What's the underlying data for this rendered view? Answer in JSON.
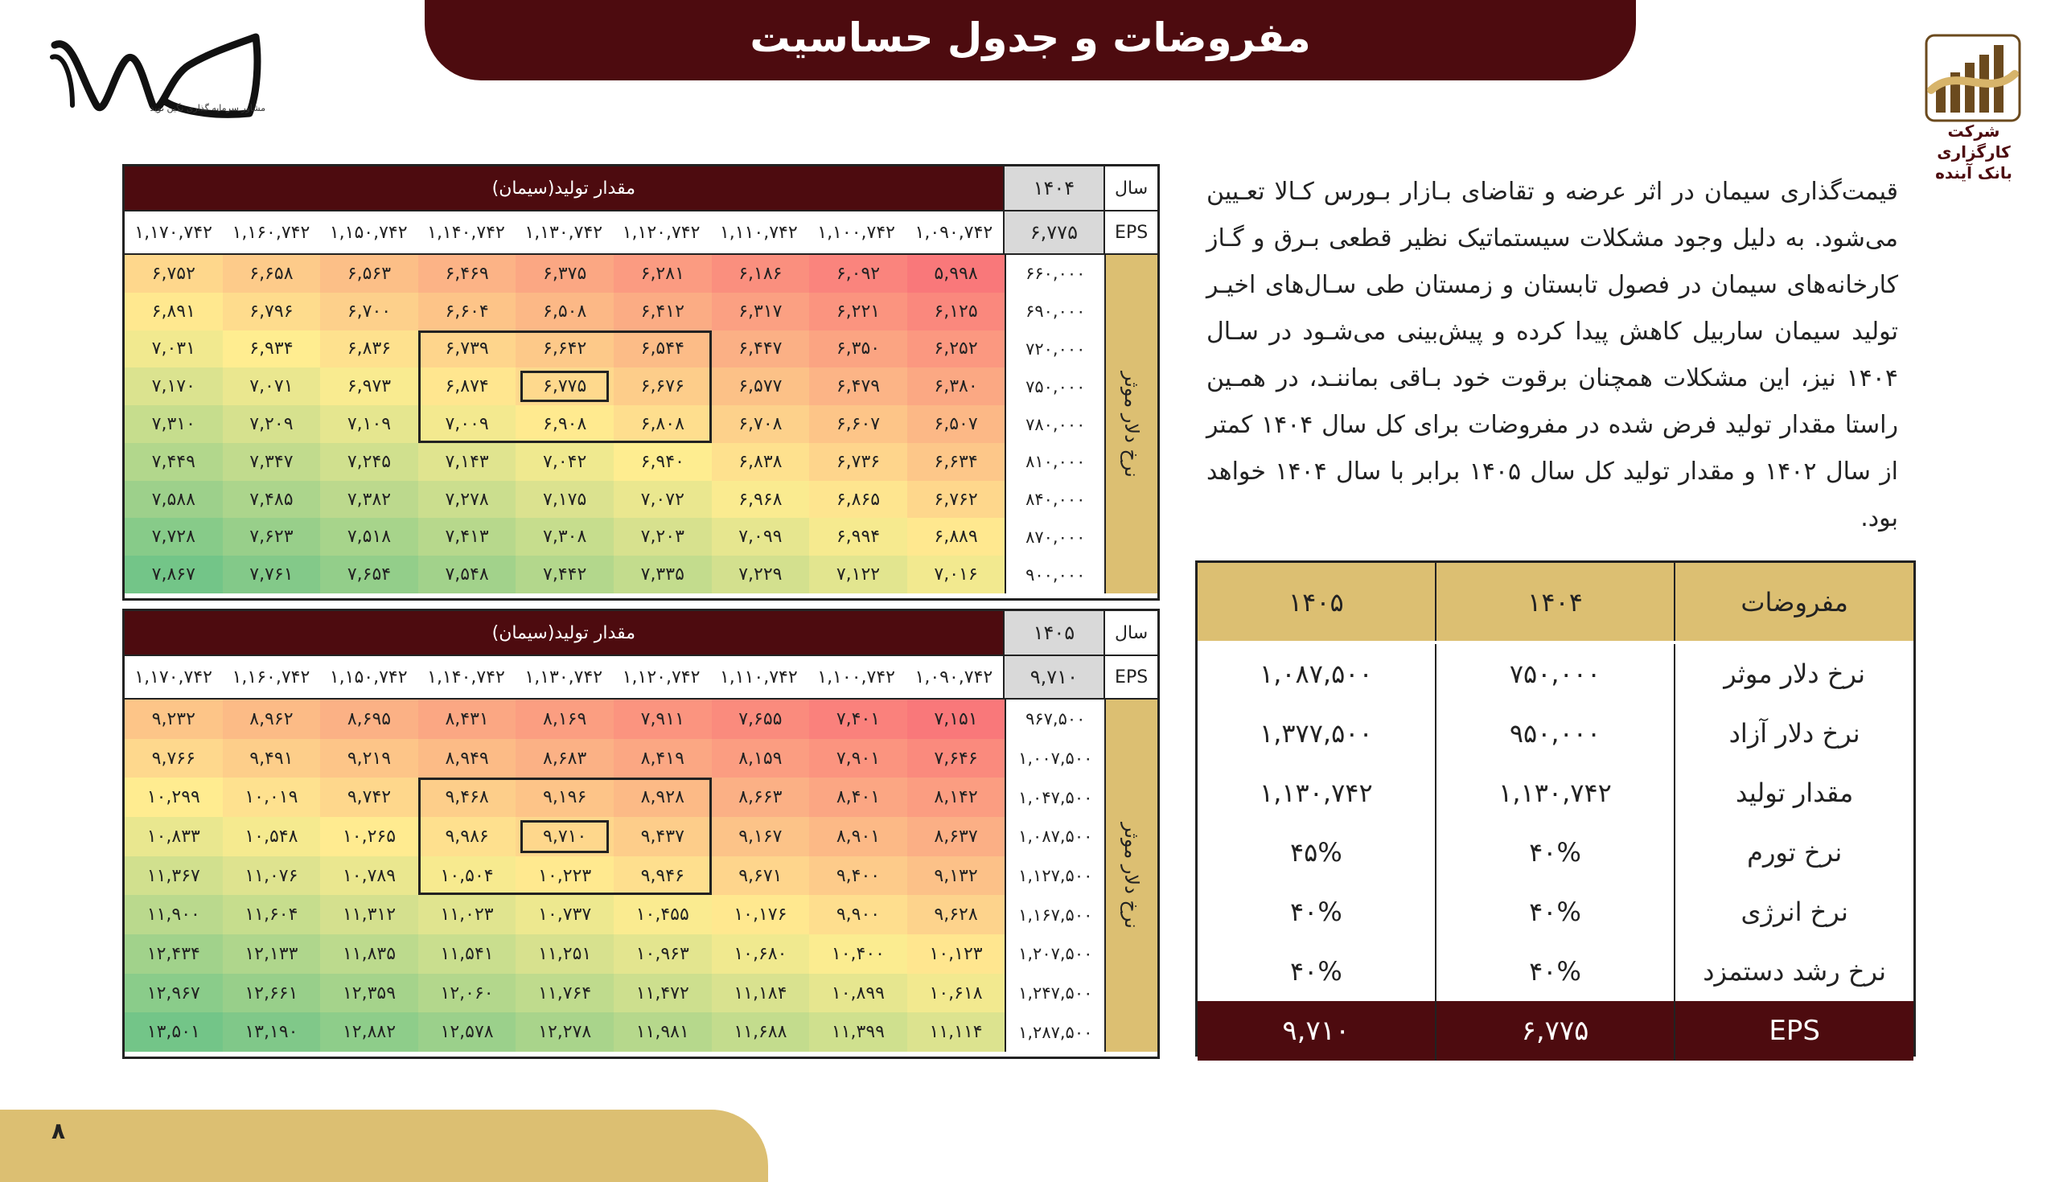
{
  "header": {
    "title": "مفروضات و جدول حساسیت"
  },
  "logo_left": {
    "caption": "مشاور سرمایه گذاری نگین نوید"
  },
  "logo_right": {
    "line1": "شرکت کارگزاری",
    "line2": "بانک آینده"
  },
  "paragraph": "قیمت‌گذاری سیمان در اثر عرضه و تقاضای بـازار بـورس کـالا تعـیین می‌شود. به دلیل وجود مشکلات سیستماتیک نظیر قطعی بـرق و گـاز کارخانه‌های سیمان در فصول تابستان و زمستان طی سـال‌های اخیـر تولید سیمان ساربیل کاهش پیدا کرده و پیش‌بینی می‌شـود در سـال ۱۴۰۴ نیز، این مشکلات همچنان برقوت خود بـاقی بماننـد، در همـین راستا مقدار تولید فرض شده در مفروضات برای کل سال ۱۴۰۴ کمتر از سال ۱۴۰۲ و مقدار تولید کل سال ۱۴۰۵ برابر با سال ۱۴۰۴ خواهد بود.",
  "assumptions": {
    "headers": [
      "مفروضات",
      "۱۴۰۴",
      "۱۴۰۵"
    ],
    "rows": [
      [
        "نرخ دلار موثر",
        "۷۵۰,۰۰۰",
        "۱,۰۸۷,۵۰۰"
      ],
      [
        "نرخ دلار آزاد",
        "۹۵۰,۰۰۰",
        "۱,۳۷۷,۵۰۰"
      ],
      [
        "مقدار تولید",
        "۱,۱۳۰,۷۴۲",
        "۱,۱۳۰,۷۴۲"
      ],
      [
        "نرخ تورم",
        "۴۰%",
        "۴۵%"
      ],
      [
        "نرخ انرژی",
        "۴۰%",
        "۴۰%"
      ],
      [
        "نرخ رشد دستمزد",
        "۴۰%",
        "۴۰%"
      ]
    ],
    "footer": [
      "EPS",
      "۶,۷۷۵",
      "۹,۷۱۰"
    ]
  },
  "sensitivity": [
    {
      "year_label": "سال",
      "year": "۱۴۰۴",
      "eps_label": "EPS",
      "eps": "۶,۷۷۵",
      "production_label": "مقدار تولید(سیمان)",
      "rate_label": "نرخ دلار موثر",
      "production": [
        "۱,۱۷۰,۷۴۲",
        "۱,۱۶۰,۷۴۲",
        "۱,۱۵۰,۷۴۲",
        "۱,۱۴۰,۷۴۲",
        "۱,۱۳۰,۷۴۲",
        "۱,۱۲۰,۷۴۲",
        "۱,۱۱۰,۷۴۲",
        "۱,۱۰۰,۷۴۲",
        "۱,۰۹۰,۷۴۲"
      ],
      "rates": [
        "۶۶۰,۰۰۰",
        "۶۹۰,۰۰۰",
        "۷۲۰,۰۰۰",
        "۷۵۰,۰۰۰",
        "۷۸۰,۰۰۰",
        "۸۱۰,۰۰۰",
        "۸۴۰,۰۰۰",
        "۸۷۰,۰۰۰",
        "۹۰۰,۰۰۰"
      ],
      "values": [
        [
          "۶,۷۵۲",
          "۶,۶۵۸",
          "۶,۵۶۳",
          "۶,۴۶۹",
          "۶,۳۷۵",
          "۶,۲۸۱",
          "۶,۱۸۶",
          "۶,۰۹۲",
          "۵,۹۹۸"
        ],
        [
          "۶,۸۹۱",
          "۶,۷۹۶",
          "۶,۷۰۰",
          "۶,۶۰۴",
          "۶,۵۰۸",
          "۶,۴۱۲",
          "۶,۳۱۷",
          "۶,۲۲۱",
          "۶,۱۲۵"
        ],
        [
          "۷,۰۳۱",
          "۶,۹۳۴",
          "۶,۸۳۶",
          "۶,۷۳۹",
          "۶,۶۴۲",
          "۶,۵۴۴",
          "۶,۴۴۷",
          "۶,۳۵۰",
          "۶,۲۵۲"
        ],
        [
          "۷,۱۷۰",
          "۷,۰۷۱",
          "۶,۹۷۳",
          "۶,۸۷۴",
          "۶,۷۷۵",
          "۶,۶۷۶",
          "۶,۵۷۷",
          "۶,۴۷۹",
          "۶,۳۸۰"
        ],
        [
          "۷,۳۱۰",
          "۷,۲۰۹",
          "۷,۱۰۹",
          "۷,۰۰۹",
          "۶,۹۰۸",
          "۶,۸۰۸",
          "۶,۷۰۸",
          "۶,۶۰۷",
          "۶,۵۰۷"
        ],
        [
          "۷,۴۴۹",
          "۷,۳۴۷",
          "۷,۲۴۵",
          "۷,۱۴۳",
          "۷,۰۴۲",
          "۶,۹۴۰",
          "۶,۸۳۸",
          "۶,۷۳۶",
          "۶,۶۳۴"
        ],
        [
          "۷,۵۸۸",
          "۷,۴۸۵",
          "۷,۳۸۲",
          "۷,۲۷۸",
          "۷,۱۷۵",
          "۷,۰۷۲",
          "۶,۹۶۸",
          "۶,۸۶۵",
          "۶,۷۶۲"
        ],
        [
          "۷,۷۲۸",
          "۷,۶۲۳",
          "۷,۵۱۸",
          "۷,۴۱۳",
          "۷,۳۰۸",
          "۷,۲۰۳",
          "۷,۰۹۹",
          "۶,۹۹۴",
          "۶,۸۸۹"
        ],
        [
          "۷,۸۶۷",
          "۷,۷۶۱",
          "۷,۶۵۴",
          "۷,۵۴۸",
          "۷,۴۴۲",
          "۷,۳۳۵",
          "۷,۲۲۹",
          "۷,۱۲۲",
          "۷,۰۱۶"
        ]
      ],
      "min": 5998,
      "max": 7867
    },
    {
      "year_label": "سال",
      "year": "۱۴۰۵",
      "eps_label": "EPS",
      "eps": "۹,۷۱۰",
      "production_label": "مقدار تولید(سیمان)",
      "rate_label": "نرخ دلار موثر",
      "production": [
        "۱,۱۷۰,۷۴۲",
        "۱,۱۶۰,۷۴۲",
        "۱,۱۵۰,۷۴۲",
        "۱,۱۴۰,۷۴۲",
        "۱,۱۳۰,۷۴۲",
        "۱,۱۲۰,۷۴۲",
        "۱,۱۱۰,۷۴۲",
        "۱,۱۰۰,۷۴۲",
        "۱,۰۹۰,۷۴۲"
      ],
      "rates": [
        "۹۶۷,۵۰۰",
        "۱,۰۰۷,۵۰۰",
        "۱,۰۴۷,۵۰۰",
        "۱,۰۸۷,۵۰۰",
        "۱,۱۲۷,۵۰۰",
        "۱,۱۶۷,۵۰۰",
        "۱,۲۰۷,۵۰۰",
        "۱,۲۴۷,۵۰۰",
        "۱,۲۸۷,۵۰۰"
      ],
      "values": [
        [
          "۹,۲۳۲",
          "۸,۹۶۲",
          "۸,۶۹۵",
          "۸,۴۳۱",
          "۸,۱۶۹",
          "۷,۹۱۱",
          "۷,۶۵۵",
          "۷,۴۰۱",
          "۷,۱۵۱"
        ],
        [
          "۹,۷۶۶",
          "۹,۴۹۱",
          "۹,۲۱۹",
          "۸,۹۴۹",
          "۸,۶۸۳",
          "۸,۴۱۹",
          "۸,۱۵۹",
          "۷,۹۰۱",
          "۷,۶۴۶"
        ],
        [
          "۱۰,۲۹۹",
          "۱۰,۰۱۹",
          "۹,۷۴۲",
          "۹,۴۶۸",
          "۹,۱۹۶",
          "۸,۹۲۸",
          "۸,۶۶۳",
          "۸,۴۰۱",
          "۸,۱۴۲"
        ],
        [
          "۱۰,۸۳۳",
          "۱۰,۵۴۸",
          "۱۰,۲۶۵",
          "۹,۹۸۶",
          "۹,۷۱۰",
          "۹,۴۳۷",
          "۹,۱۶۷",
          "۸,۹۰۱",
          "۸,۶۳۷"
        ],
        [
          "۱۱,۳۶۷",
          "۱۱,۰۷۶",
          "۱۰,۷۸۹",
          "۱۰,۵۰۴",
          "۱۰,۲۲۳",
          "۹,۹۴۶",
          "۹,۶۷۱",
          "۹,۴۰۰",
          "۹,۱۳۲"
        ],
        [
          "۱۱,۹۰۰",
          "۱۱,۶۰۴",
          "۱۱,۳۱۲",
          "۱۱,۰۲۳",
          "۱۰,۷۳۷",
          "۱۰,۴۵۵",
          "۱۰,۱۷۶",
          "۹,۹۰۰",
          "۹,۶۲۸"
        ],
        [
          "۱۲,۴۳۴",
          "۱۲,۱۳۳",
          "۱۱,۸۳۵",
          "۱۱,۵۴۱",
          "۱۱,۲۵۱",
          "۱۰,۹۶۳",
          "۱۰,۶۸۰",
          "۱۰,۴۰۰",
          "۱۰,۱۲۳"
        ],
        [
          "۱۲,۹۶۷",
          "۱۲,۶۶۱",
          "۱۲,۳۵۹",
          "۱۲,۰۶۰",
          "۱۱,۷۶۴",
          "۱۱,۴۷۲",
          "۱۱,۱۸۴",
          "۱۰,۸۹۹",
          "۱۰,۶۱۸"
        ],
        [
          "۱۳,۵۰۱",
          "۱۳,۱۹۰",
          "۱۲,۸۸۲",
          "۱۲,۵۷۸",
          "۱۲,۲۷۸",
          "۱۱,۹۸۱",
          "۱۱,۶۸۸",
          "۱۱,۳۹۹",
          "۱۱,۱۱۴"
        ]
      ],
      "min": 7151,
      "max": 13501
    }
  ],
  "footer": {
    "page_number": "۸"
  },
  "colors": {
    "maroon": "#4d0b0f",
    "gold": "#dcbf72",
    "low": "#f8696b",
    "mid": "#ffeb84",
    "high": "#63be7b"
  }
}
